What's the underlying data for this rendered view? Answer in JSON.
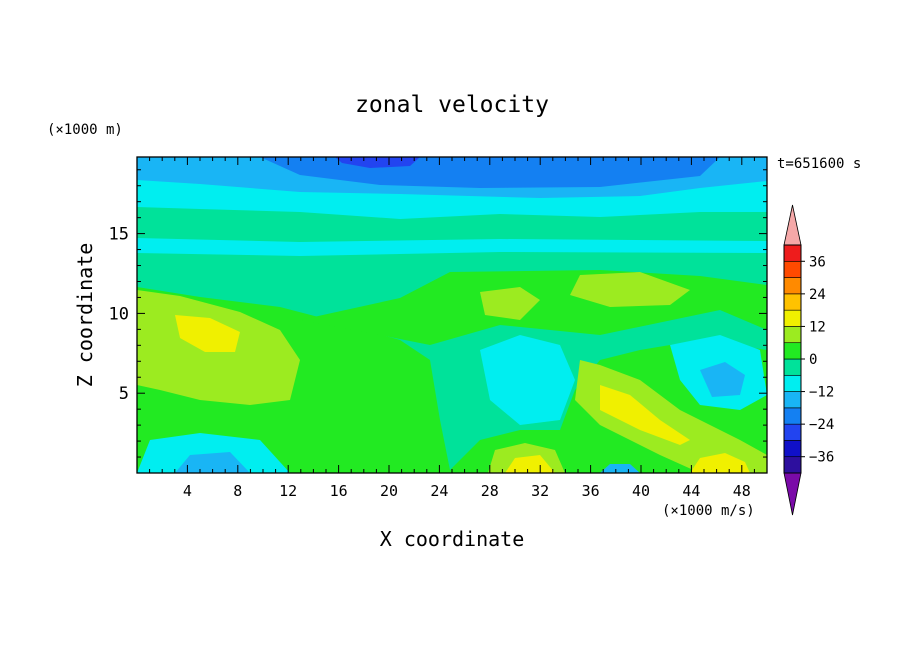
{
  "chart_data": {
    "type": "heatmap",
    "title": "zonal velocity",
    "xlabel": "X coordinate",
    "ylabel": "Z coordinate",
    "x_unit": "(×1000 m/s)",
    "y_unit": "(×1000 m)",
    "time_label": "t=651600 s",
    "xlim": [
      0,
      50
    ],
    "ylim": [
      0,
      19.8
    ],
    "xticks": [
      4,
      8,
      12,
      16,
      20,
      24,
      28,
      32,
      36,
      40,
      44,
      48
    ],
    "yticks": [
      5,
      10,
      15
    ],
    "colorbar": {
      "levels": [
        -42,
        -36,
        -30,
        -24,
        -18,
        -12,
        -6,
        0,
        6,
        12,
        18,
        24,
        30,
        36,
        42
      ],
      "labels": [
        36,
        24,
        12,
        0,
        -12,
        -24,
        -36
      ],
      "colors": [
        "#7a0aa8",
        "#2d0f9e",
        "#1010c8",
        "#2244f0",
        "#1480f2",
        "#19b5f5",
        "#00eef0",
        "#00e29a",
        "#22ea22",
        "#9ceb20",
        "#f0f000",
        "#ffc200",
        "#ff8a00",
        "#ff4a00",
        "#ee1c1c",
        "#f5a8a8"
      ],
      "extend": "both"
    }
  }
}
